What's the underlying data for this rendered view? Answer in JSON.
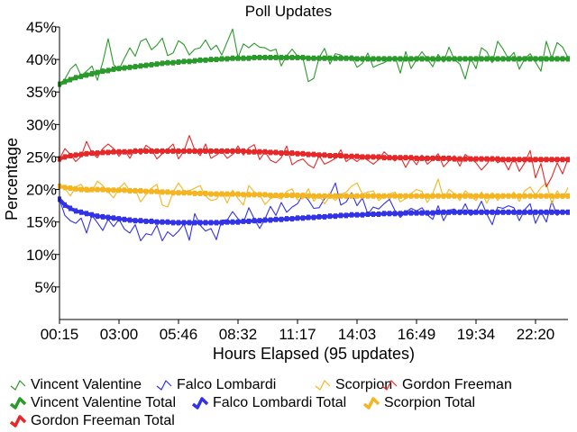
{
  "chart_data": {
    "type": "line",
    "title": "Poll Updates",
    "xlabel": "Hours Elapsed (95 updates)",
    "ylabel": "Percentage",
    "ylim": [
      0,
      45
    ],
    "yticks": [
      "5%",
      "10%",
      "15%",
      "20%",
      "25%",
      "30%",
      "35%",
      "40%",
      "45%"
    ],
    "ytick_values": [
      5,
      10,
      15,
      20,
      25,
      30,
      35,
      40,
      45
    ],
    "xtick_labels": [
      "00:15",
      "03:00",
      "05:46",
      "08:32",
      "11:17",
      "14:03",
      "16:49",
      "19:34",
      "22:20"
    ],
    "xtick_index": [
      0,
      11,
      22,
      33,
      44,
      55,
      66,
      77,
      88
    ],
    "n_updates": 95,
    "series": [
      {
        "name": "Vincent Valentine",
        "kind": "raw",
        "color": "#2a9a2a",
        "values": [
          36.2,
          37.0,
          38.5,
          39.3,
          37.5,
          38.2,
          39.0,
          36.8,
          39.6,
          43.2,
          39.2,
          38.5,
          40.2,
          41.8,
          40.5,
          42.8,
          43.2,
          41.5,
          42.2,
          43.3,
          40.6,
          41.0,
          42.9,
          42.3,
          40.7,
          41.6,
          41.8,
          43.0,
          41.5,
          42.2,
          40.7,
          42.7,
          44.7,
          40.3,
          42.4,
          41.8,
          42.5,
          41.9,
          41.8,
          41.3,
          41.6,
          39.0,
          40.6,
          41.6,
          40.5,
          40.2,
          36.6,
          37.1,
          40.3,
          41.7,
          39.3,
          40.9,
          40.7,
          40.1,
          40.6,
          38.8,
          39.4,
          41.0,
          38.8,
          39.2,
          39.5,
          40.0,
          40.5,
          37.9,
          41.2,
          38.6,
          40.0,
          41.2,
          40.1,
          38.9,
          40.8,
          39.6,
          41.9,
          40.0,
          39.3,
          37.0,
          40.2,
          38.6,
          41.8,
          41.2,
          39.5,
          42.8,
          41.6,
          40.1,
          41.1,
          38.5,
          40.1,
          40.9,
          39.6,
          38.2,
          42.8,
          40.2,
          42.6,
          41.9,
          40.3
        ]
      },
      {
        "name": "Falco Lombardi",
        "kind": "raw",
        "color": "#3232e6",
        "values": [
          18.5,
          16.0,
          15.2,
          14.8,
          15.6,
          13.3,
          16.0,
          14.9,
          13.7,
          15.4,
          14.3,
          15.4,
          13.9,
          13.3,
          14.6,
          12.1,
          13.2,
          13.0,
          14.5,
          12.1,
          13.5,
          12.8,
          13.6,
          14.7,
          12.2,
          16.3,
          14.5,
          13.6,
          14.0,
          12.3,
          15.3,
          15.3,
          16.6,
          15.5,
          14.9,
          17.2,
          15.5,
          14.0,
          15.5,
          17.4,
          16.0,
          18.0,
          16.5,
          17.3,
          17.8,
          19.2,
          18.4,
          17.1,
          17.2,
          18.6,
          19.2,
          21.0,
          17.6,
          18.1,
          19.5,
          17.5,
          18.7,
          16.2,
          17.3,
          17.0,
          17.8,
          18.5,
          16.8,
          15.7,
          16.5,
          17.1,
          16.7,
          17.2,
          16.1,
          15.4,
          17.5,
          15.2,
          16.8,
          17.0,
          16.1,
          17.8,
          16.0,
          16.5,
          18.2,
          16.2,
          14.6,
          17.3,
          17.1,
          17.5,
          17.2,
          15.2,
          16.9,
          17.8,
          14.8,
          16.6,
          15.0,
          18.2,
          16.0,
          16.8,
          16.4
        ]
      },
      {
        "name": "Scorpion",
        "kind": "raw",
        "color": "#f5b521",
        "values": [
          20.5,
          20.2,
          19.0,
          20.4,
          20.8,
          19.6,
          19.7,
          21.3,
          20.6,
          19.6,
          18.7,
          20.2,
          21.0,
          19.8,
          20.0,
          18.1,
          19.2,
          20.2,
          20.8,
          17.6,
          17.3,
          19.6,
          21.0,
          19.8,
          19.8,
          20.2,
          20.6,
          19.0,
          18.3,
          18.5,
          19.7,
          17.9,
          19.9,
          18.6,
          17.6,
          20.6,
          19.6,
          19.2,
          17.7,
          18.6,
          18.9,
          18.5,
          19.7,
          20.1,
          18.4,
          18.6,
          20.1,
          18.2,
          19.2,
          17.8,
          19.0,
          18.3,
          19.2,
          19.6,
          20.5,
          21.0,
          19.3,
          19.6,
          19.8,
          18.3,
          19.0,
          19.3,
          19.6,
          18.1,
          18.6,
          19.4,
          20.0,
          19.7,
          18.0,
          19.4,
          21.6,
          18.6,
          20.0,
          19.4,
          18.3,
          19.8,
          19.0,
          18.3,
          19.6,
          17.9,
          19.5,
          18.3,
          19.3,
          18.7,
          19.6,
          18.2,
          19.8,
          20.4,
          19.1,
          20.3,
          21.0,
          17.8,
          19.8,
          18.6,
          20.3
        ]
      },
      {
        "name": "Gordon Freeman",
        "kind": "raw",
        "color": "#e62828",
        "values": [
          24.7,
          26.3,
          25.4,
          24.3,
          25.1,
          27.4,
          25.6,
          24.9,
          26.3,
          27.0,
          26.3,
          25.1,
          26.1,
          24.8,
          26.3,
          25.4,
          26.8,
          26.2,
          24.7,
          25.5,
          26.2,
          27.0,
          24.7,
          25.9,
          28.3,
          26.1,
          25.2,
          27.0,
          24.8,
          25.3,
          25.9,
          24.8,
          25.4,
          26.7,
          25.3,
          26.4,
          26.9,
          24.6,
          25.8,
          24.5,
          24.1,
          24.9,
          26.7,
          23.8,
          24.4,
          24.7,
          23.8,
          23.3,
          25.2,
          23.9,
          24.3,
          24.8,
          26.1,
          24.3,
          24.9,
          24.3,
          25.0,
          24.5,
          23.9,
          24.6,
          25.8,
          25.0,
          24.4,
          25.1,
          23.4,
          24.9,
          23.8,
          25.3,
          23.9,
          24.6,
          25.5,
          23.5,
          24.4,
          25.2,
          23.6,
          25.4,
          24.8,
          24.1,
          23.0,
          23.9,
          25.1,
          24.1,
          24.6,
          23.0,
          24.9,
          22.8,
          24.1,
          26.0,
          21.8,
          24.0,
          20.4,
          21.9,
          24.1,
          22.4,
          24.7
        ]
      },
      {
        "name": "Vincent Valentine Total",
        "kind": "total",
        "color": "#2a9a2a",
        "values": [
          36.2,
          36.6,
          36.9,
          37.2,
          37.4,
          37.6,
          37.8,
          38.0,
          38.2,
          38.3,
          38.5,
          38.6,
          38.7,
          38.8,
          38.9,
          39.0,
          39.1,
          39.2,
          39.3,
          39.4,
          39.5,
          39.5,
          39.6,
          39.7,
          39.7,
          39.8,
          39.9,
          39.9,
          40.0,
          40.0,
          40.1,
          40.1,
          40.2,
          40.2,
          40.2,
          40.2,
          40.3,
          40.3,
          40.3,
          40.3,
          40.3,
          40.3,
          40.3,
          40.3,
          40.3,
          40.3,
          40.2,
          40.2,
          40.2,
          40.2,
          40.2,
          40.2,
          40.2,
          40.2,
          40.2,
          40.1,
          40.1,
          40.1,
          40.1,
          40.1,
          40.1,
          40.1,
          40.1,
          40.1,
          40.1,
          40.1,
          40.1,
          40.1,
          40.1,
          40.1,
          40.1,
          40.1,
          40.1,
          40.1,
          40.1,
          40.1,
          40.1,
          40.1,
          40.1,
          40.1,
          40.1,
          40.1,
          40.1,
          40.1,
          40.1,
          40.1,
          40.1,
          40.1,
          40.1,
          40.1,
          40.1,
          40.1,
          40.1,
          40.1,
          40.1
        ]
      },
      {
        "name": "Falco Lombardi Total",
        "kind": "total",
        "color": "#3232e6",
        "values": [
          18.5,
          17.6,
          17.1,
          16.7,
          16.5,
          16.3,
          16.1,
          15.9,
          15.8,
          15.7,
          15.6,
          15.5,
          15.4,
          15.3,
          15.2,
          15.2,
          15.1,
          15.1,
          15.0,
          15.0,
          15.0,
          14.9,
          14.9,
          14.9,
          14.9,
          14.9,
          14.9,
          14.9,
          14.9,
          14.9,
          14.9,
          15.0,
          15.0,
          15.0,
          15.1,
          15.1,
          15.2,
          15.2,
          15.3,
          15.3,
          15.4,
          15.4,
          15.5,
          15.5,
          15.6,
          15.6,
          15.7,
          15.7,
          15.8,
          15.8,
          15.9,
          15.9,
          16.0,
          16.0,
          16.1,
          16.1,
          16.1,
          16.2,
          16.2,
          16.2,
          16.3,
          16.3,
          16.3,
          16.3,
          16.4,
          16.4,
          16.4,
          16.4,
          16.4,
          16.4,
          16.5,
          16.5,
          16.5,
          16.5,
          16.5,
          16.5,
          16.5,
          16.5,
          16.5,
          16.5,
          16.5,
          16.5,
          16.5,
          16.5,
          16.5,
          16.5,
          16.5,
          16.5,
          16.5,
          16.5,
          16.5,
          16.5,
          16.5,
          16.5,
          16.5
        ]
      },
      {
        "name": "Scorpion Total",
        "kind": "total",
        "color": "#f5b521",
        "values": [
          20.5,
          20.3,
          20.2,
          20.1,
          20.0,
          20.0,
          20.0,
          20.0,
          20.0,
          19.9,
          19.9,
          19.9,
          19.9,
          19.8,
          19.8,
          19.8,
          19.7,
          19.7,
          19.7,
          19.6,
          19.6,
          19.5,
          19.5,
          19.5,
          19.5,
          19.4,
          19.4,
          19.4,
          19.3,
          19.3,
          19.3,
          19.3,
          19.3,
          19.3,
          19.2,
          19.2,
          19.2,
          19.2,
          19.2,
          19.1,
          19.1,
          19.1,
          19.1,
          19.1,
          19.1,
          19.1,
          19.0,
          19.0,
          19.0,
          19.0,
          19.0,
          19.0,
          19.0,
          19.0,
          19.0,
          19.0,
          19.0,
          19.0,
          19.0,
          19.0,
          19.0,
          19.0,
          19.0,
          19.0,
          19.0,
          19.0,
          19.0,
          19.0,
          19.0,
          19.0,
          19.0,
          19.0,
          19.0,
          19.0,
          19.0,
          19.0,
          19.0,
          19.0,
          19.0,
          19.0,
          19.0,
          19.0,
          19.0,
          19.0,
          19.0,
          19.0,
          19.0,
          19.0,
          19.0,
          19.0,
          19.0,
          19.0,
          19.0,
          19.0,
          19.0
        ]
      },
      {
        "name": "Gordon Freeman Total",
        "kind": "total",
        "color": "#e62828",
        "values": [
          24.7,
          25.0,
          25.2,
          25.3,
          25.4,
          25.5,
          25.6,
          25.6,
          25.7,
          25.7,
          25.8,
          25.8,
          25.8,
          25.8,
          25.9,
          25.9,
          25.9,
          25.9,
          25.9,
          25.9,
          25.9,
          25.9,
          25.9,
          25.9,
          25.9,
          25.9,
          25.9,
          25.9,
          25.9,
          25.9,
          25.9,
          25.9,
          25.9,
          25.9,
          25.9,
          25.8,
          25.8,
          25.8,
          25.8,
          25.7,
          25.7,
          25.6,
          25.6,
          25.6,
          25.5,
          25.5,
          25.4,
          25.4,
          25.3,
          25.3,
          25.2,
          25.2,
          25.2,
          25.1,
          25.1,
          25.1,
          25.0,
          25.0,
          25.0,
          25.0,
          24.9,
          24.9,
          24.9,
          24.9,
          24.9,
          24.9,
          24.8,
          24.8,
          24.8,
          24.8,
          24.8,
          24.8,
          24.8,
          24.7,
          24.7,
          24.7,
          24.7,
          24.7,
          24.7,
          24.7,
          24.7,
          24.7,
          24.6,
          24.6,
          24.6,
          24.6,
          24.6,
          24.6,
          24.6,
          24.6,
          24.6,
          24.6,
          24.6,
          24.6,
          24.6
        ]
      }
    ],
    "legend": {
      "placement": "bottom",
      "rows": [
        [
          {
            "label": "Vincent Valentine",
            "color": "#2a9a2a",
            "kind": "raw"
          },
          {
            "label": "Falco Lombardi",
            "color": "#3232e6",
            "kind": "raw"
          },
          {
            "label": "Scorpion",
            "color": "#f5b521",
            "kind": "raw"
          },
          {
            "label": "Gordon Freeman",
            "color": "#e62828",
            "kind": "raw"
          }
        ],
        [
          {
            "label": "Vincent Valentine Total",
            "color": "#2a9a2a",
            "kind": "total"
          },
          {
            "label": "Falco Lombardi Total",
            "color": "#3232e6",
            "kind": "total"
          },
          {
            "label": "Scorpion Total",
            "color": "#f5b521",
            "kind": "total"
          }
        ],
        [
          {
            "label": "Gordon Freeman Total",
            "color": "#e62828",
            "kind": "total"
          }
        ]
      ]
    }
  }
}
